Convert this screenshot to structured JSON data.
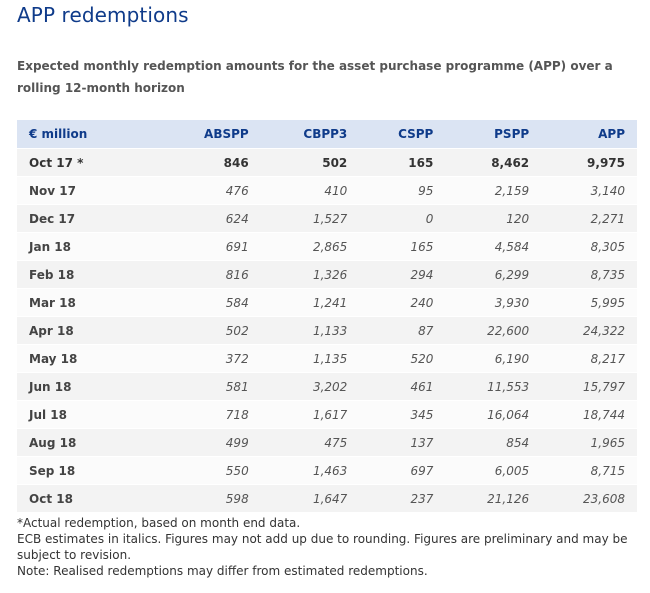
{
  "title": "APP redemptions",
  "subtitle": "Expected monthly redemption amounts for the asset purchase programme (APP) over a rolling 12-month horizon",
  "table": {
    "headers": [
      "€ million",
      "ABSPP",
      "CBPP3",
      "CSPP",
      "PSPP",
      "APP"
    ],
    "rows": [
      [
        "Oct 17 *",
        "846",
        "502",
        "165",
        "8,462",
        "9,975"
      ],
      [
        "Nov 17",
        "476",
        "410",
        "95",
        "2,159",
        "3,140"
      ],
      [
        "Dec 17",
        "624",
        "1,527",
        "0",
        "120",
        "2,271"
      ],
      [
        "Jan 18",
        "691",
        "2,865",
        "165",
        "4,584",
        "8,305"
      ],
      [
        "Feb 18",
        "816",
        "1,326",
        "294",
        "6,299",
        "8,735"
      ],
      [
        "Mar 18",
        "584",
        "1,241",
        "240",
        "3,930",
        "5,995"
      ],
      [
        "Apr 18",
        "502",
        "1,133",
        "87",
        "22,600",
        "24,322"
      ],
      [
        "May 18",
        "372",
        "1,135",
        "520",
        "6,190",
        "8,217"
      ],
      [
        "Jun 18",
        "581",
        "3,202",
        "461",
        "11,553",
        "15,797"
      ],
      [
        "Jul 18",
        "718",
        "1,617",
        "345",
        "16,064",
        "18,744"
      ],
      [
        "Aug 18",
        "499",
        "475",
        "137",
        "854",
        "1,965"
      ],
      [
        "Sep 18",
        "550",
        "1,463",
        "697",
        "6,005",
        "8,715"
      ],
      [
        "Oct 18",
        "598",
        "1,647",
        "237",
        "21,126",
        "23,608"
      ]
    ]
  },
  "notes": [
    "*Actual redemption, based on month end data.",
    "ECB estimates in italics. Figures may not add up due to rounding. Figures are preliminary and may be subject to revision.",
    "Note: Realised redemptions may differ from estimated redemptions."
  ]
}
